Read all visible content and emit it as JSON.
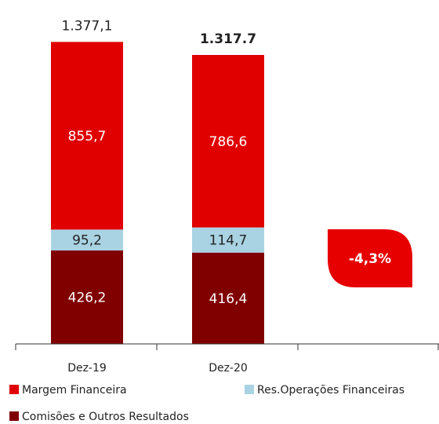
{
  "chart_data": {
    "type": "stacked_bar",
    "categories": [
      "Dez-19",
      "Dez-20"
    ],
    "series": [
      {
        "name": "Comisões e Outros Resultados",
        "color": "#800000",
        "values": [
          426.2,
          416.4
        ],
        "value_labels": [
          "426,2",
          "416,4"
        ],
        "label_color": "#ffffff"
      },
      {
        "name": "Res.Operações Financeiras",
        "color": "#a9d3e3",
        "values": [
          95.2,
          114.7
        ],
        "value_labels": [
          "95,2",
          "114,7"
        ],
        "label_color": "#222222"
      },
      {
        "name": "Margem Financeira",
        "color": "#e00000",
        "values": [
          855.7,
          786.6
        ],
        "value_labels": [
          "855,7",
          "786,6"
        ],
        "label_color": "#ffffff"
      }
    ],
    "totals": [
      1377.1,
      1317.7
    ],
    "total_labels": [
      "1.377,1",
      "1.317.7"
    ],
    "annotation": "-4,3%",
    "ylim": [
      0,
      1400
    ]
  }
}
